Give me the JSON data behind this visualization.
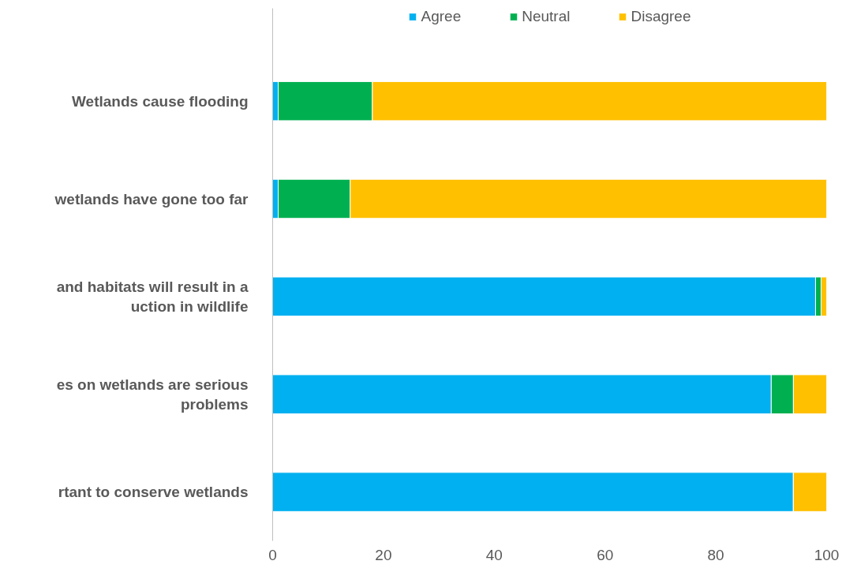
{
  "chart_data": {
    "type": "bar",
    "orientation": "horizontal",
    "stacked": true,
    "categories": [
      "Wetlands cause flooding",
      "wetlands have gone too far",
      "and habitats will result in a\nuction in wildlife",
      "es on wetlands are serious\nproblems",
      "rtant to conserve wetlands"
    ],
    "series": [
      {
        "name": "Agree",
        "color": "#00b0f0",
        "values": [
          1,
          1,
          98,
          90,
          94
        ]
      },
      {
        "name": "Neutral",
        "color": "#00b050",
        "values": [
          17,
          13,
          1,
          4,
          0
        ]
      },
      {
        "name": "Disagree",
        "color": "#ffc000",
        "values": [
          82,
          86,
          1,
          6,
          6
        ]
      }
    ],
    "xlim": [
      0,
      100
    ],
    "xticks": [
      0,
      20,
      40,
      60,
      80,
      100
    ],
    "grid": false,
    "legend": "top"
  }
}
